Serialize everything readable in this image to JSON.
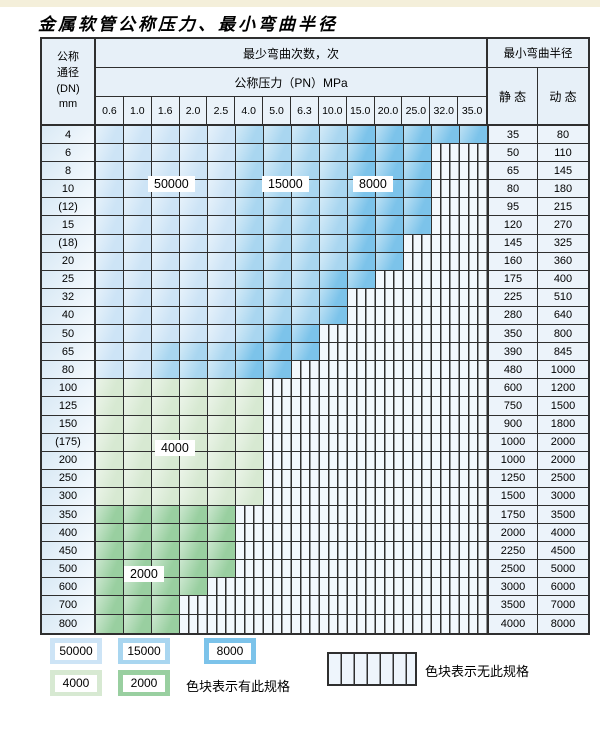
{
  "title": "金属软管公称压力、最小弯曲半径",
  "colors": {
    "light_blue": "#cde4f6",
    "medium_blue": "#a9d6f0",
    "dark_blue": "#7cc3ea",
    "light_green": "#d7e9d2",
    "dark_green": "#99cfa0",
    "grid": "#2f2f2f"
  },
  "table": {
    "corner": {
      "line1": "公称",
      "line2": "通径",
      "line3": "(DN)",
      "line4": "mm"
    },
    "bend_cycles_header": "最少弯曲次数，次",
    "pressure_header": "公称压力（PN）MPa",
    "radius_header": "最小弯曲半径",
    "static_header": "静 态",
    "dynamic_header": "动 态",
    "pressures": [
      "0.6",
      "1.0",
      "1.6",
      "2.0",
      "2.5",
      "4.0",
      "5.0",
      "6.3",
      "10.0",
      "15.0",
      "20.0",
      "25.0",
      "32.0",
      "35.0"
    ],
    "rows": [
      {
        "dn": "4",
        "band": "b",
        "le": 4,
        "me": 8,
        "max": 13,
        "static": "35",
        "dynamic": "80"
      },
      {
        "dn": "6",
        "band": "b",
        "le": 4,
        "me": 8,
        "max": 11,
        "static": "50",
        "dynamic": "110"
      },
      {
        "dn": "8",
        "band": "b",
        "le": 4,
        "me": 8,
        "max": 11,
        "static": "65",
        "dynamic": "145"
      },
      {
        "dn": "10",
        "band": "b",
        "le": 4,
        "me": 8,
        "max": 11,
        "static": "80",
        "dynamic": "180"
      },
      {
        "dn": "(12)",
        "band": "b",
        "le": 4,
        "me": 8,
        "max": 11,
        "static": "95",
        "dynamic": "215"
      },
      {
        "dn": "15",
        "band": "b",
        "le": 4,
        "me": 8,
        "max": 11,
        "static": "120",
        "dynamic": "270"
      },
      {
        "dn": "(18)",
        "band": "b",
        "le": 4,
        "me": 8,
        "max": 10,
        "static": "145",
        "dynamic": "325"
      },
      {
        "dn": "20",
        "band": "b",
        "le": 4,
        "me": 8,
        "max": 10,
        "static": "160",
        "dynamic": "360"
      },
      {
        "dn": "25",
        "band": "b",
        "le": 4,
        "me": 7,
        "max": 9,
        "static": "175",
        "dynamic": "400"
      },
      {
        "dn": "32",
        "band": "b",
        "le": 4,
        "me": 7,
        "max": 8,
        "static": "225",
        "dynamic": "510"
      },
      {
        "dn": "40",
        "band": "b",
        "le": 4,
        "me": 7,
        "max": 8,
        "static": "280",
        "dynamic": "640"
      },
      {
        "dn": "50",
        "band": "b",
        "le": 4,
        "me": 5,
        "max": 7,
        "static": "350",
        "dynamic": "800"
      },
      {
        "dn": "65",
        "band": "b",
        "le": 1,
        "me": 4,
        "max": 7,
        "static": "390",
        "dynamic": "845"
      },
      {
        "dn": "80",
        "band": "b",
        "le": 1,
        "me": 4,
        "max": 6,
        "static": "480",
        "dynamic": "1000"
      },
      {
        "dn": "100",
        "band": "gl",
        "max": 5,
        "static": "600",
        "dynamic": "1200"
      },
      {
        "dn": "125",
        "band": "gl",
        "max": 5,
        "static": "750",
        "dynamic": "1500"
      },
      {
        "dn": "150",
        "band": "gl",
        "max": 5,
        "static": "900",
        "dynamic": "1800"
      },
      {
        "dn": "(175)",
        "band": "gl",
        "max": 5,
        "static": "1000",
        "dynamic": "2000"
      },
      {
        "dn": "200",
        "band": "gl",
        "max": 5,
        "static": "1000",
        "dynamic": "2000"
      },
      {
        "dn": "250",
        "band": "gl",
        "max": 5,
        "static": "1250",
        "dynamic": "2500"
      },
      {
        "dn": "300",
        "band": "gl",
        "max": 5,
        "static": "1500",
        "dynamic": "3000"
      },
      {
        "dn": "350",
        "band": "gd",
        "max": 4,
        "static": "1750",
        "dynamic": "3500"
      },
      {
        "dn": "400",
        "band": "gd",
        "max": 4,
        "static": "2000",
        "dynamic": "4000"
      },
      {
        "dn": "450",
        "band": "gd",
        "max": 4,
        "static": "2250",
        "dynamic": "4500"
      },
      {
        "dn": "500",
        "band": "gd",
        "max": 4,
        "static": "2500",
        "dynamic": "5000"
      },
      {
        "dn": "600",
        "band": "gd",
        "max": 3,
        "static": "3000",
        "dynamic": "6000"
      },
      {
        "dn": "700",
        "band": "gd",
        "max": 2,
        "static": "3500",
        "dynamic": "7000"
      },
      {
        "dn": "800",
        "band": "gd",
        "max": 2,
        "static": "4000",
        "dynamic": "8000"
      }
    ]
  },
  "zone_labels": {
    "z50000": "50000",
    "z15000": "15000",
    "z8000": "8000",
    "z4000": "4000",
    "z2000": "2000"
  },
  "legend": {
    "items": [
      {
        "label": "50000",
        "color_key": "light_blue"
      },
      {
        "label": "15000",
        "color_key": "medium_blue"
      },
      {
        "label": "8000",
        "color_key": "dark_blue"
      },
      {
        "label": "4000",
        "color_key": "light_green"
      },
      {
        "label": "2000",
        "color_key": "dark_green"
      }
    ],
    "has_spec_note": "色块表示有此规格",
    "no_spec_note": "色块表示无此规格"
  }
}
